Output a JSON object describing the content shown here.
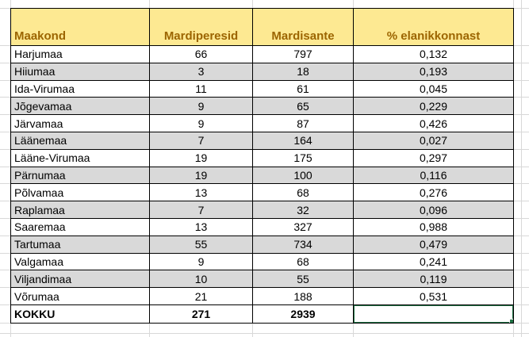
{
  "sheet": {
    "columns": [
      {
        "label": "Maakond"
      },
      {
        "label": "Mardiperesid"
      },
      {
        "label": "Mardisante"
      },
      {
        "label": "% elanikkonnast"
      }
    ],
    "rows": [
      {
        "name": "Harjumaa",
        "peresid": "66",
        "sante": "797",
        "pct": "0,132"
      },
      {
        "name": "Hiiumaa",
        "peresid": "3",
        "sante": "18",
        "pct": "0,193"
      },
      {
        "name": "Ida-Virumaa",
        "peresid": "11",
        "sante": "61",
        "pct": "0,045"
      },
      {
        "name": "Jõgevamaa",
        "peresid": "9",
        "sante": "65",
        "pct": "0,229"
      },
      {
        "name": "Järvamaa",
        "peresid": "9",
        "sante": "87",
        "pct": "0,426"
      },
      {
        "name": "Läänemaa",
        "peresid": "7",
        "sante": "164",
        "pct": "0,027"
      },
      {
        "name": "Lääne-Virumaa",
        "peresid": "19",
        "sante": "175",
        "pct": "0,297"
      },
      {
        "name": "Pärnumaa",
        "peresid": "19",
        "sante": "100",
        "pct": "0,116"
      },
      {
        "name": "Põlvamaa",
        "peresid": "13",
        "sante": "68",
        "pct": "0,276"
      },
      {
        "name": "Raplamaa",
        "peresid": "7",
        "sante": "32",
        "pct": "0,096"
      },
      {
        "name": "Saaremaa",
        "peresid": "13",
        "sante": "327",
        "pct": "0,988"
      },
      {
        "name": "Tartumaa",
        "peresid": "55",
        "sante": "734",
        "pct": "0,479"
      },
      {
        "name": "Valgamaa",
        "peresid": "9",
        "sante": "68",
        "pct": "0,241"
      },
      {
        "name": "Viljandimaa",
        "peresid": "10",
        "sante": "55",
        "pct": "0,119"
      },
      {
        "name": "Võrumaa",
        "peresid": "21",
        "sante": "188",
        "pct": "0,531"
      }
    ],
    "total": {
      "label": "KOKKU",
      "peresid": "271",
      "sante": "2939",
      "pct": ""
    }
  },
  "colors": {
    "header_bg": "#FDE992",
    "header_text": "#9C6500",
    "stripe": "#D9D9D9",
    "selection_border": "#217346",
    "gridline": "#D8D8D8",
    "cell_border": "#000000"
  }
}
